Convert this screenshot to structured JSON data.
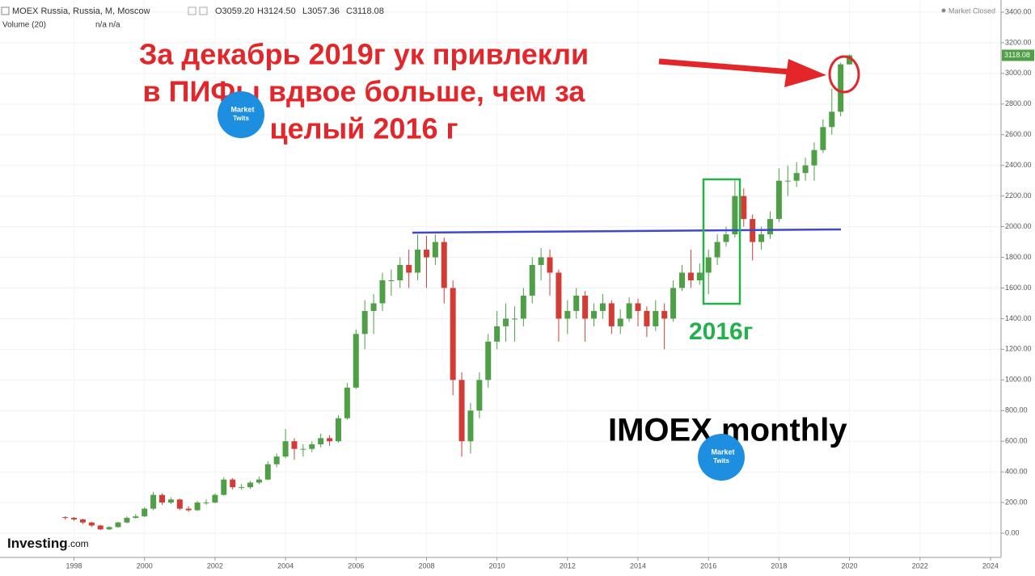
{
  "header": {
    "symbol": "MOEX Russia, Russia, M, Moscow",
    "open": "O3059.20",
    "high": "H3124.50",
    "low": "L3057.36",
    "close": "C3118.08",
    "volume": "Volume (20)",
    "volume_values": "n/a  n/a",
    "status": "Market Closed",
    "brand": "Investing",
    "brand_suffix": ".com",
    "last_price_label": "3118.08"
  },
  "annotations": {
    "headline": [
      "За декабрь 2019г ук привлекли",
      "в ПИФы вдвое больше, чем за",
      "целый 2016 г"
    ],
    "box_label": "2016г",
    "chart_name": "IMOEX monthly",
    "logo": [
      "Market",
      "Twits"
    ]
  },
  "chart_data": {
    "type": "candlestick",
    "grid": true,
    "up_color": "#4e9f45",
    "down_color": "#d23c35",
    "x": [
      1997.75,
      1998,
      1998.25,
      1998.5,
      1998.75,
      1999,
      1999.25,
      1999.5,
      1999.75,
      2000,
      2000.25,
      2000.5,
      2000.75,
      2001,
      2001.25,
      2001.5,
      2001.75,
      2002,
      2002.25,
      2002.5,
      2002.75,
      2003,
      2003.25,
      2003.5,
      2003.75,
      2004,
      2004.25,
      2004.5,
      2004.75,
      2005,
      2005.25,
      2005.5,
      2005.75,
      2006,
      2006.25,
      2006.5,
      2006.75,
      2007,
      2007.25,
      2007.5,
      2007.75,
      2008,
      2008.25,
      2008.5,
      2008.75,
      2009,
      2009.25,
      2009.5,
      2009.75,
      2010,
      2010.25,
      2010.5,
      2010.75,
      2011,
      2011.25,
      2011.5,
      2011.75,
      2012,
      2012.25,
      2012.5,
      2012.75,
      2013,
      2013.25,
      2013.5,
      2013.75,
      2014,
      2014.25,
      2014.5,
      2014.75,
      2015,
      2015.25,
      2015.5,
      2015.75,
      2016,
      2016.25,
      2016.5,
      2016.75,
      2017,
      2017.25,
      2017.5,
      2017.75,
      2018,
      2018.25,
      2018.5,
      2018.75,
      2019,
      2019.25,
      2019.5,
      2019.75,
      2020
    ],
    "open": [
      105,
      100,
      90,
      70,
      50,
      25,
      40,
      70,
      100,
      110,
      160,
      250,
      200,
      220,
      160,
      150,
      200,
      200,
      250,
      350,
      300,
      300,
      330,
      350,
      450,
      500,
      600,
      550,
      550,
      580,
      620,
      600,
      750,
      950,
      1300,
      1450,
      1500,
      1650,
      1650,
      1750,
      1700,
      1850,
      1800,
      1900,
      1600,
      1000,
      600,
      800,
      1000,
      1250,
      1350,
      1400,
      1400,
      1550,
      1750,
      1800,
      1700,
      1400,
      1450,
      1550,
      1400,
      1450,
      1500,
      1350,
      1400,
      1500,
      1450,
      1350,
      1450,
      1400,
      1600,
      1700,
      1650,
      1700,
      1800,
      1900,
      1950,
      2200,
      2050,
      1900,
      1950,
      2050,
      2300,
      2300,
      2350,
      2400,
      2500,
      2650,
      2750,
      3059.2
    ],
    "high": [
      110,
      105,
      95,
      75,
      55,
      45,
      75,
      110,
      125,
      170,
      270,
      260,
      235,
      225,
      175,
      210,
      220,
      260,
      365,
      360,
      320,
      340,
      370,
      470,
      520,
      680,
      620,
      580,
      600,
      650,
      640,
      770,
      980,
      1330,
      1520,
      1560,
      1700,
      1720,
      1800,
      1850,
      1950,
      1940,
      1950,
      1930,
      1650,
      1050,
      850,
      1050,
      1300,
      1450,
      1500,
      1480,
      1600,
      1800,
      1860,
      1850,
      1720,
      1520,
      1600,
      1580,
      1500,
      1560,
      1520,
      1460,
      1540,
      1530,
      1480,
      1520,
      1500,
      1650,
      1750,
      1850,
      1760,
      1850,
      1950,
      2000,
      2300,
      2250,
      2080,
      2000,
      2100,
      2380,
      2400,
      2420,
      2450,
      2550,
      2700,
      2900,
      3070,
      3124.5
    ],
    "low": [
      90,
      80,
      60,
      40,
      20,
      20,
      35,
      65,
      95,
      105,
      150,
      185,
      190,
      150,
      140,
      145,
      185,
      195,
      245,
      285,
      285,
      290,
      320,
      345,
      430,
      490,
      480,
      500,
      530,
      560,
      570,
      590,
      740,
      940,
      1200,
      1300,
      1450,
      1550,
      1600,
      1600,
      1650,
      1600,
      1750,
      1500,
      900,
      500,
      520,
      750,
      950,
      1200,
      1250,
      1250,
      1350,
      1500,
      1650,
      1550,
      1250,
      1300,
      1400,
      1250,
      1350,
      1400,
      1300,
      1300,
      1380,
      1350,
      1280,
      1320,
      1200,
      1380,
      1580,
      1600,
      1620,
      1560,
      1750,
      1870,
      1930,
      2000,
      1780,
      1850,
      1920,
      2030,
      2200,
      2260,
      2300,
      2300,
      2480,
      2600,
      2720,
      3057.36
    ],
    "close": [
      100,
      90,
      70,
      50,
      25,
      40,
      70,
      100,
      110,
      160,
      250,
      200,
      220,
      160,
      150,
      200,
      200,
      250,
      350,
      300,
      300,
      330,
      350,
      450,
      500,
      600,
      550,
      550,
      580,
      620,
      600,
      750,
      950,
      1300,
      1450,
      1500,
      1650,
      1650,
      1750,
      1700,
      1850,
      1800,
      1900,
      1600,
      1000,
      600,
      800,
      1000,
      1250,
      1350,
      1400,
      1400,
      1550,
      1750,
      1800,
      1700,
      1400,
      1450,
      1550,
      1400,
      1450,
      1500,
      1350,
      1400,
      1500,
      1450,
      1350,
      1450,
      1400,
      1600,
      1700,
      1650,
      1700,
      1800,
      1900,
      1950,
      2200,
      2050,
      1900,
      1950,
      2050,
      2300,
      2300,
      2350,
      2400,
      2500,
      2650,
      2750,
      3059.2,
      3118.08
    ],
    "xlim": [
      1995.9,
      2024.3
    ],
    "xticks": [
      1998,
      2000,
      2002,
      2004,
      2006,
      2008,
      2010,
      2012,
      2014,
      2016,
      2018,
      2020,
      2022,
      2024
    ],
    "ylim": [
      -158,
      3479
    ],
    "yticks": [
      {
        "value": 0,
        "label": "0.00"
      },
      {
        "value": 200,
        "label": "200.00"
      },
      {
        "value": 400,
        "label": "400.00"
      },
      {
        "value": 600,
        "label": "600.00"
      },
      {
        "value": 800,
        "label": "800.00"
      },
      {
        "value": 1000,
        "label": "1000.00"
      },
      {
        "value": 1200,
        "label": "1200.00"
      },
      {
        "value": 1400,
        "label": "1400.00"
      },
      {
        "value": 1600,
        "label": "1600.00"
      },
      {
        "value": 1800,
        "label": "1800.00"
      },
      {
        "value": 2000,
        "label": "2000.00"
      },
      {
        "value": 2200,
        "label": "2200.00"
      },
      {
        "value": 2400,
        "label": "2400.00"
      },
      {
        "value": 2600,
        "label": "2600.00"
      },
      {
        "value": 2800,
        "label": "2800.00"
      },
      {
        "value": 3000,
        "label": "3000.00"
      },
      {
        "value": 3200,
        "label": "3200.00"
      },
      {
        "value": 3400,
        "label": "3400.00"
      }
    ]
  }
}
